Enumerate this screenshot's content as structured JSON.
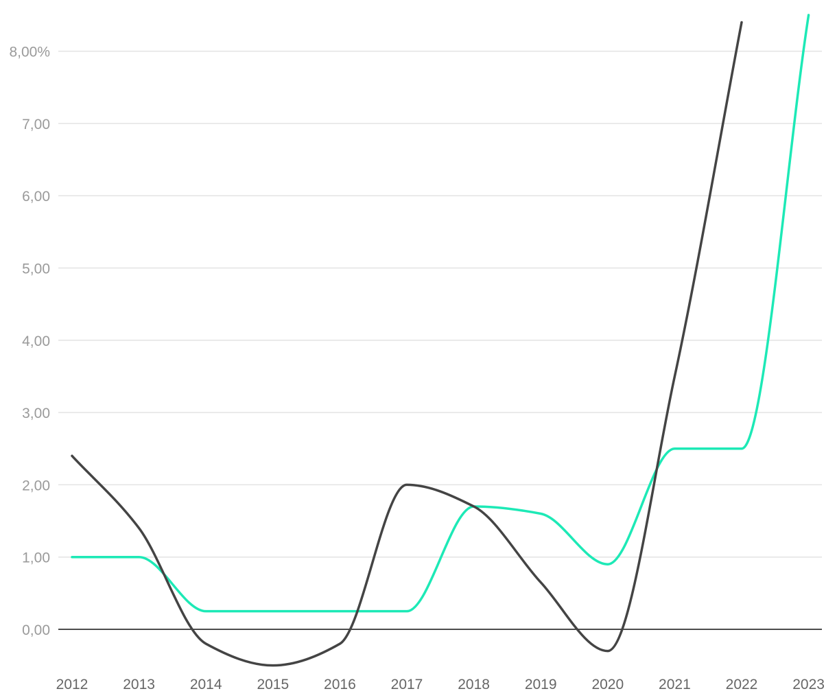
{
  "chart_data": {
    "type": "line",
    "title": "",
    "xlabel": "",
    "ylabel": "",
    "x": [
      "2012",
      "2013",
      "2014",
      "2015",
      "2016",
      "2017",
      "2018",
      "2019",
      "2020",
      "2021",
      "2022",
      "2023"
    ],
    "ylim": [
      -0.5,
      8.5
    ],
    "yticks": [
      0,
      1,
      2,
      3,
      4,
      5,
      6,
      7,
      8
    ],
    "ytick_labels": [
      "0,00",
      "1,00",
      "2,00",
      "3,00",
      "4,00",
      "5,00",
      "6,00",
      "7,00",
      "8,00%"
    ],
    "grid": true,
    "series": [
      {
        "color": "#1de9b6",
        "values": [
          1.0,
          1.0,
          0.25,
          0.25,
          0.25,
          0.25,
          1.7,
          1.6,
          0.9,
          2.5,
          2.5,
          8.5
        ]
      },
      {
        "color": "#444444",
        "values": [
          2.4,
          1.4,
          -0.2,
          -0.5,
          -0.2,
          2.0,
          1.7,
          0.65,
          -0.3,
          3.5,
          8.4,
          null
        ]
      }
    ]
  }
}
